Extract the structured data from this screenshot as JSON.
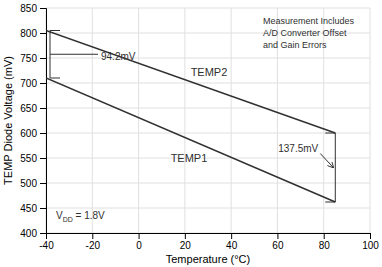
{
  "chart_data": {
    "type": "line",
    "x": [
      -40,
      85
    ],
    "series": [
      {
        "name": "TEMP2",
        "color": "#303030",
        "values": [
          805,
          600
        ]
      },
      {
        "name": "TEMP1",
        "color": "#303030",
        "values": [
          710,
          462
        ]
      }
    ],
    "xlabel": "Temperature (°C)",
    "ylabel": "TEMP Diode Voltage (mV)",
    "xlim": [
      -40,
      100
    ],
    "ylim": [
      400,
      850
    ],
    "xticks": [
      -40,
      -20,
      0,
      20,
      40,
      60,
      80,
      100
    ],
    "yticks": [
      400,
      450,
      500,
      550,
      600,
      650,
      700,
      750,
      800,
      850
    ],
    "grid": true,
    "annotations": [
      {
        "text": "94.2mV"
      },
      {
        "text": "137.5mV"
      },
      {
        "text": "V",
        "subscript": "DD",
        "suffix": " = 1.8V"
      },
      {
        "text": "Measurement Includes\nA/D Converter Offset\nand Gain Errors"
      }
    ]
  }
}
